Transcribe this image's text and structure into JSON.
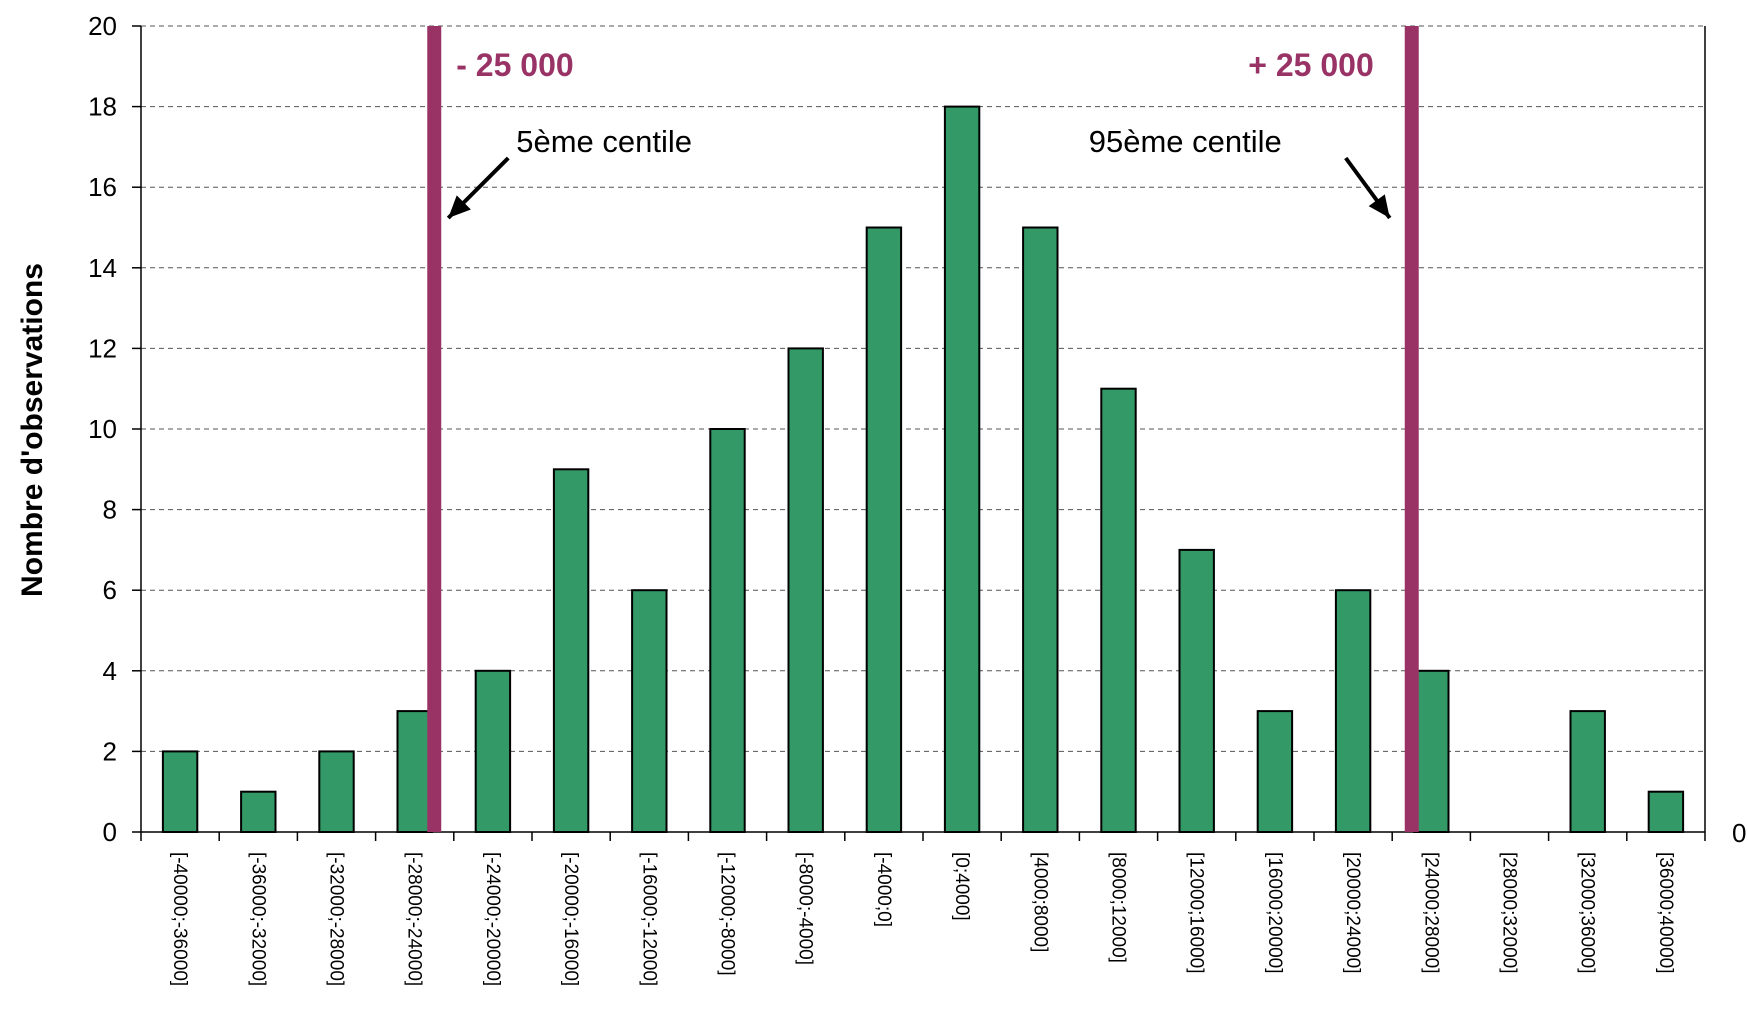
{
  "chart_data": {
    "type": "bar",
    "ylabel": "Nombre d'observations",
    "xlabel": "",
    "ylim": [
      0,
      20
    ],
    "yticks": [
      "0",
      "2",
      "4",
      "6",
      "8",
      "10",
      "12",
      "14",
      "16",
      "18",
      "20"
    ],
    "grid": true,
    "categories": [
      "[-40000;-36000]",
      "[-36000;-32000]",
      "[-32000;-28000]",
      "[-28000;-24000]",
      "[-24000;-20000]",
      "[-20000;-16000]",
      "[-16000;-12000]",
      "[-12000;-8000]",
      "[-8000;-4000]",
      "[-4000;0]",
      "[0;4000]",
      "[4000;8000]",
      "[8000;12000]",
      "[12000;16000]",
      "[16000;20000]",
      "[20000;24000]",
      "[24000;28000]",
      "[28000;32000]",
      "[32000;36000]",
      "[36000;40000]"
    ],
    "values": [
      2,
      1,
      2,
      3,
      4,
      9,
      6,
      10,
      12,
      15,
      18,
      15,
      11,
      7,
      3,
      6,
      4,
      0,
      3,
      1
    ],
    "colors": {
      "bar": "#339966",
      "bar_outline": "#000000",
      "marker": "#993366",
      "grid": "#555555"
    },
    "secondary_axis_label": "0",
    "reference_lines": [
      {
        "x": -25000,
        "label": "- 25 000",
        "note": "5ème centile"
      },
      {
        "x": 25000,
        "label": "+ 25 000",
        "note": "95ème centile"
      }
    ]
  }
}
